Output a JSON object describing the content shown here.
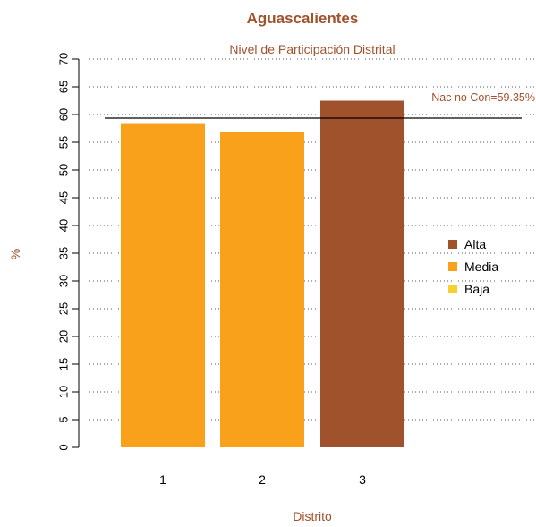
{
  "colors": {
    "title": "#a0522d",
    "alta": "#a0522d",
    "media": "#f9a11b",
    "baja": "#f7d12e",
    "axis": "#000000",
    "reference_line": "#000000"
  },
  "chart_data": {
    "type": "bar",
    "title": "Aguascalientes",
    "subtitle": "Nivel de Participación Distrital",
    "xlabel": "Distrito",
    "ylabel": "%",
    "categories": [
      "1",
      "2",
      "3"
    ],
    "values": [
      58.3,
      56.8,
      62.5
    ],
    "bar_levels": [
      "Media",
      "Media",
      "Alta"
    ],
    "ylim": [
      0,
      70
    ],
    "yticks": [
      0,
      5,
      10,
      15,
      20,
      25,
      30,
      35,
      40,
      45,
      50,
      55,
      60,
      65,
      70
    ],
    "grid": "horizontal dotted",
    "reference_line": {
      "value": 59.35,
      "label": "Nac no Con=59.35%"
    },
    "legend": {
      "placement": "right",
      "items": [
        {
          "label": "Alta",
          "color": "#a0522d"
        },
        {
          "label": "Media",
          "color": "#f9a11b"
        },
        {
          "label": "Baja",
          "color": "#f7d12e"
        }
      ]
    }
  }
}
